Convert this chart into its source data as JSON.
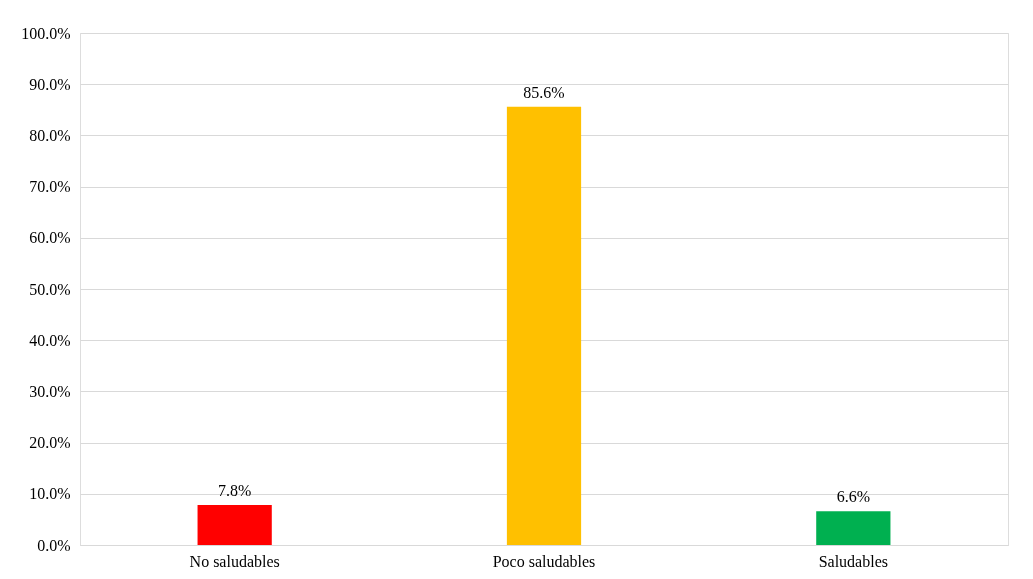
{
  "chart_data": {
    "type": "bar",
    "categories": [
      "No saludables",
      "Poco saludables",
      "Saludables"
    ],
    "values": [
      7.8,
      85.6,
      6.6
    ],
    "colors": [
      "#ff0000",
      "#ffc000",
      "#00b050"
    ],
    "value_labels": [
      "7.8%",
      "85.6%",
      "6.6%"
    ],
    "ylim": [
      0,
      100
    ],
    "yticks": [
      {
        "value": 0,
        "label": "0.0%"
      },
      {
        "value": 10,
        "label": "10.0%"
      },
      {
        "value": 20,
        "label": "20.0%"
      },
      {
        "value": 30,
        "label": "30.0%"
      },
      {
        "value": 40,
        "label": "40.0%"
      },
      {
        "value": 50,
        "label": "50.0%"
      },
      {
        "value": 60,
        "label": "60.0%"
      },
      {
        "value": 70,
        "label": "70.0%"
      },
      {
        "value": 80,
        "label": "80.0%"
      },
      {
        "value": 90,
        "label": "90.0%"
      },
      {
        "value": 100,
        "label": "100.0%"
      }
    ],
    "grid": "y"
  }
}
